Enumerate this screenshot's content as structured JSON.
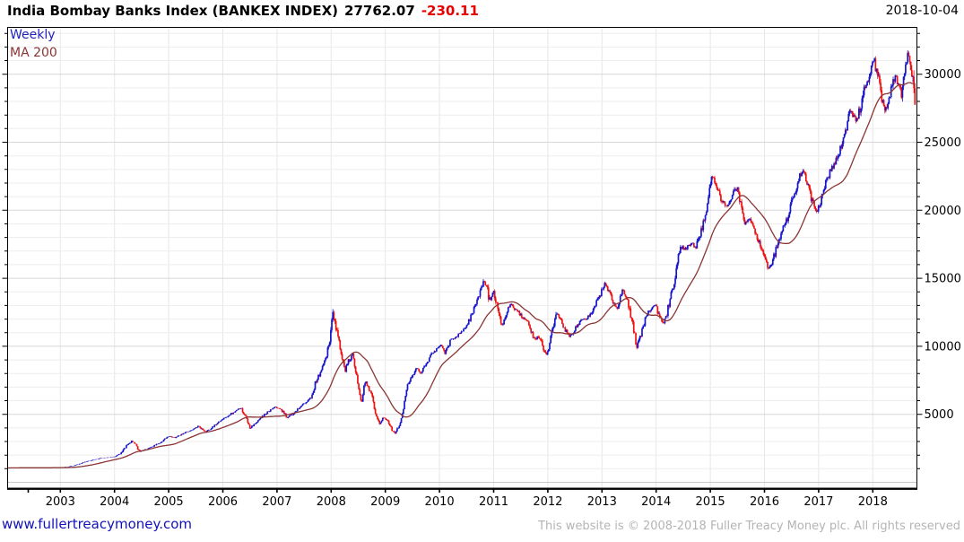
{
  "header": {
    "title": "India Bombay Banks Index (BANKEX INDEX)",
    "last_price": "27762.07",
    "change": "-230.11",
    "date": "2018-10-04"
  },
  "legend": {
    "timeframe": "Weekly",
    "ma_label": "MA 200"
  },
  "footer": {
    "site_link": "www.fullertreacymoney.com",
    "copyright": "This website is © 2008-2018 Fuller Treacy Money plc. All rights reserved"
  },
  "chart_data": {
    "type": "candlestick",
    "interval": "weekly",
    "title": "India Bombay Banks Index (BANKEX INDEX)",
    "last_close": 27762.07,
    "change": -230.11,
    "as_of": "2018-10-04",
    "ma_label": "MA 200",
    "ma_period_weeks": 36,
    "xlim": [
      2002.02,
      2018.81
    ],
    "ylim": [
      0,
      33440
    ],
    "y_ticks": [
      5000,
      10000,
      15000,
      20000,
      25000,
      30000
    ],
    "y_minor_step": 1000,
    "x_tick_labels": [
      "2003",
      "2004",
      "2005",
      "2006",
      "2007",
      "2008",
      "2009",
      "2010",
      "2011",
      "2012",
      "2013",
      "2014",
      "2015",
      "2016",
      "2017",
      "2018"
    ],
    "grid": true,
    "legend_position": "top-left",
    "colors": {
      "up": "#1515cd",
      "down": "#ee1111",
      "ma": "#8b3434",
      "change": "#e60000",
      "link": "#1111bb"
    },
    "anchors": [
      [
        2002.04,
        1060
      ],
      [
        2002.3,
        1075
      ],
      [
        2002.55,
        1065
      ],
      [
        2002.8,
        1080
      ],
      [
        2003.0,
        1100
      ],
      [
        2003.15,
        1140
      ],
      [
        2003.3,
        1290
      ],
      [
        2003.45,
        1480
      ],
      [
        2003.6,
        1640
      ],
      [
        2003.75,
        1770
      ],
      [
        2003.9,
        1840
      ],
      [
        2004.02,
        1890
      ],
      [
        2004.12,
        2150
      ],
      [
        2004.22,
        2650
      ],
      [
        2004.32,
        3020
      ],
      [
        2004.38,
        2850
      ],
      [
        2004.46,
        2230
      ],
      [
        2004.55,
        2380
      ],
      [
        2004.7,
        2620
      ],
      [
        2004.85,
        2950
      ],
      [
        2005.0,
        3380
      ],
      [
        2005.12,
        3280
      ],
      [
        2005.28,
        3620
      ],
      [
        2005.42,
        3820
      ],
      [
        2005.55,
        4120
      ],
      [
        2005.68,
        3700
      ],
      [
        2005.8,
        4020
      ],
      [
        2005.95,
        4480
      ],
      [
        2006.1,
        4900
      ],
      [
        2006.25,
        5280
      ],
      [
        2006.34,
        5480
      ],
      [
        2006.42,
        4850
      ],
      [
        2006.5,
        3980
      ],
      [
        2006.6,
        4330
      ],
      [
        2006.72,
        4800
      ],
      [
        2006.85,
        5230
      ],
      [
        2006.97,
        5520
      ],
      [
        2007.08,
        5320
      ],
      [
        2007.2,
        4720
      ],
      [
        2007.32,
        5120
      ],
      [
        2007.45,
        5620
      ],
      [
        2007.55,
        5960
      ],
      [
        2007.63,
        6280
      ],
      [
        2007.72,
        7420
      ],
      [
        2007.82,
        8250
      ],
      [
        2007.9,
        9100
      ],
      [
        2007.97,
        10300
      ],
      [
        2008.03,
        12350
      ],
      [
        2008.08,
        11500
      ],
      [
        2008.14,
        10300
      ],
      [
        2008.2,
        9300
      ],
      [
        2008.25,
        8100
      ],
      [
        2008.32,
        8900
      ],
      [
        2008.4,
        9350
      ],
      [
        2008.48,
        7600
      ],
      [
        2008.56,
        5750
      ],
      [
        2008.63,
        7500
      ],
      [
        2008.7,
        6900
      ],
      [
        2008.78,
        5900
      ],
      [
        2008.83,
        4800
      ],
      [
        2008.9,
        4350
      ],
      [
        2008.97,
        4800
      ],
      [
        2009.05,
        4450
      ],
      [
        2009.12,
        3900
      ],
      [
        2009.18,
        3600
      ],
      [
        2009.25,
        4100
      ],
      [
        2009.32,
        5000
      ],
      [
        2009.36,
        6200
      ],
      [
        2009.42,
        7300
      ],
      [
        2009.5,
        7900
      ],
      [
        2009.58,
        8350
      ],
      [
        2009.65,
        7950
      ],
      [
        2009.75,
        8650
      ],
      [
        2009.85,
        9350
      ],
      [
        2009.95,
        9850
      ],
      [
        2010.03,
        10100
      ],
      [
        2010.1,
        9550
      ],
      [
        2010.2,
        10350
      ],
      [
        2010.32,
        10750
      ],
      [
        2010.45,
        11300
      ],
      [
        2010.55,
        11900
      ],
      [
        2010.65,
        12850
      ],
      [
        2010.75,
        13950
      ],
      [
        2010.82,
        14750
      ],
      [
        2010.88,
        14250
      ],
      [
        2010.93,
        13250
      ],
      [
        2011.0,
        14000
      ],
      [
        2011.07,
        13000
      ],
      [
        2011.14,
        11450
      ],
      [
        2011.22,
        12100
      ],
      [
        2011.3,
        13250
      ],
      [
        2011.4,
        12700
      ],
      [
        2011.5,
        12300
      ],
      [
        2011.6,
        11900
      ],
      [
        2011.68,
        11300
      ],
      [
        2011.76,
        10400
      ],
      [
        2011.83,
        10750
      ],
      [
        2011.9,
        10100
      ],
      [
        2011.97,
        9250
      ],
      [
        2012.04,
        10300
      ],
      [
        2012.1,
        11400
      ],
      [
        2012.16,
        12450
      ],
      [
        2012.24,
        11900
      ],
      [
        2012.32,
        11200
      ],
      [
        2012.42,
        10700
      ],
      [
        2012.52,
        11400
      ],
      [
        2012.62,
        12000
      ],
      [
        2012.72,
        12050
      ],
      [
        2012.82,
        12600
      ],
      [
        2012.92,
        13400
      ],
      [
        2013.0,
        14100
      ],
      [
        2013.06,
        14550
      ],
      [
        2013.14,
        13900
      ],
      [
        2013.22,
        13200
      ],
      [
        2013.28,
        12850
      ],
      [
        2013.38,
        14200
      ],
      [
        2013.48,
        13200
      ],
      [
        2013.56,
        11800
      ],
      [
        2013.64,
        9950
      ],
      [
        2013.72,
        10900
      ],
      [
        2013.82,
        12250
      ],
      [
        2013.92,
        12900
      ],
      [
        2014.0,
        13050
      ],
      [
        2014.07,
        12000
      ],
      [
        2014.14,
        11550
      ],
      [
        2014.24,
        13100
      ],
      [
        2014.33,
        14700
      ],
      [
        2014.4,
        16500
      ],
      [
        2014.46,
        17400
      ],
      [
        2014.55,
        17100
      ],
      [
        2014.65,
        17650
      ],
      [
        2014.73,
        17150
      ],
      [
        2014.83,
        18500
      ],
      [
        2014.93,
        20200
      ],
      [
        2015.0,
        21700
      ],
      [
        2015.05,
        22600
      ],
      [
        2015.12,
        21800
      ],
      [
        2015.2,
        20800
      ],
      [
        2015.3,
        20300
      ],
      [
        2015.4,
        20900
      ],
      [
        2015.48,
        21700
      ],
      [
        2015.56,
        20600
      ],
      [
        2015.64,
        19000
      ],
      [
        2015.72,
        19300
      ],
      [
        2015.82,
        18500
      ],
      [
        2015.92,
        17400
      ],
      [
        2016.0,
        16600
      ],
      [
        2016.08,
        15700
      ],
      [
        2016.14,
        16100
      ],
      [
        2016.22,
        17300
      ],
      [
        2016.32,
        18400
      ],
      [
        2016.42,
        19400
      ],
      [
        2016.52,
        20800
      ],
      [
        2016.6,
        21900
      ],
      [
        2016.68,
        22900
      ],
      [
        2016.75,
        22500
      ],
      [
        2016.82,
        21800
      ],
      [
        2016.88,
        20700
      ],
      [
        2016.95,
        19900
      ],
      [
        2017.03,
        20400
      ],
      [
        2017.12,
        21800
      ],
      [
        2017.22,
        22900
      ],
      [
        2017.32,
        23600
      ],
      [
        2017.42,
        24800
      ],
      [
        2017.5,
        25900
      ],
      [
        2017.56,
        27400
      ],
      [
        2017.62,
        27100
      ],
      [
        2017.7,
        26700
      ],
      [
        2017.77,
        27500
      ],
      [
        2017.83,
        29100
      ],
      [
        2017.9,
        29400
      ],
      [
        2017.97,
        30400
      ],
      [
        2018.03,
        31000
      ],
      [
        2018.1,
        29700
      ],
      [
        2018.17,
        28300
      ],
      [
        2018.23,
        27300
      ],
      [
        2018.32,
        28700
      ],
      [
        2018.4,
        29900
      ],
      [
        2018.47,
        29200
      ],
      [
        2018.53,
        28500
      ],
      [
        2018.6,
        30200
      ],
      [
        2018.65,
        31600
      ],
      [
        2018.69,
        31100
      ],
      [
        2018.73,
        29900
      ],
      [
        2018.78,
        27762
      ]
    ]
  }
}
